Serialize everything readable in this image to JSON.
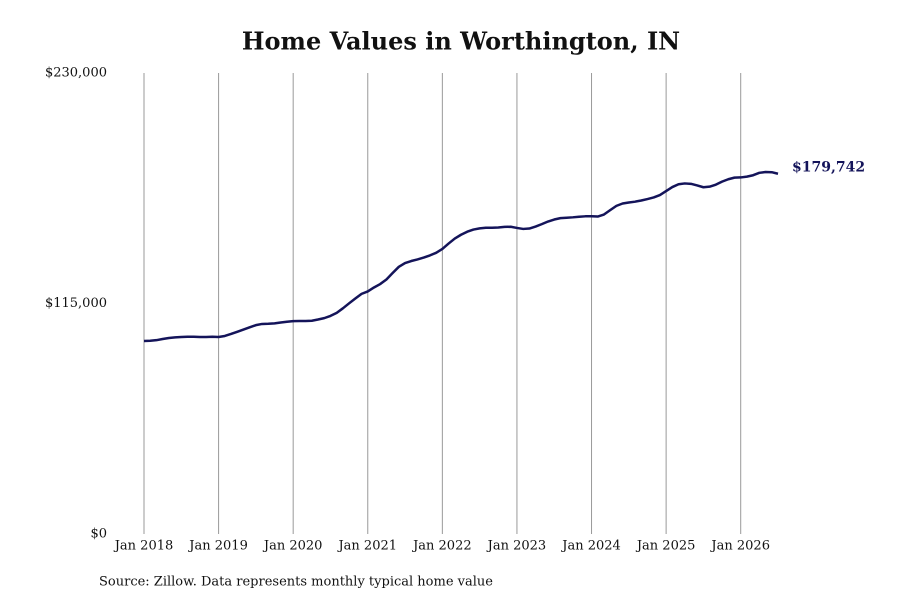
{
  "chart_data": {
    "type": "line",
    "title": "Home Values in Worthington, IN",
    "source": "Source: Zillow. Data represents monthly typical home value",
    "x": [
      "2018-01",
      "2018-02",
      "2018-03",
      "2018-04",
      "2018-05",
      "2018-06",
      "2018-07",
      "2018-08",
      "2018-09",
      "2018-10",
      "2018-11",
      "2018-12",
      "2019-01",
      "2019-02",
      "2019-03",
      "2019-04",
      "2019-05",
      "2019-06",
      "2019-07",
      "2019-08",
      "2019-09",
      "2019-10",
      "2019-11",
      "2019-12",
      "2020-01",
      "2020-02",
      "2020-03",
      "2020-04",
      "2020-05",
      "2020-06",
      "2020-07",
      "2020-08",
      "2020-09",
      "2020-10",
      "2020-11",
      "2020-12",
      "2021-01",
      "2021-02",
      "2021-03",
      "2021-04",
      "2021-05",
      "2021-06",
      "2021-07",
      "2021-08",
      "2021-09",
      "2021-10",
      "2021-11",
      "2021-12",
      "2022-01",
      "2022-02",
      "2022-03",
      "2022-04",
      "2022-05",
      "2022-06",
      "2022-07",
      "2022-08",
      "2022-09",
      "2022-10",
      "2022-11",
      "2022-12",
      "2023-01",
      "2023-02",
      "2023-03",
      "2023-04",
      "2023-05",
      "2023-06",
      "2023-07",
      "2023-08",
      "2023-09",
      "2023-10",
      "2023-11",
      "2023-12",
      "2024-01",
      "2024-02",
      "2024-03",
      "2024-04",
      "2024-05",
      "2024-06",
      "2024-07",
      "2024-08",
      "2024-09",
      "2024-10",
      "2024-11",
      "2024-12",
      "2025-01",
      "2025-02",
      "2025-03",
      "2025-04",
      "2025-05",
      "2025-06",
      "2025-07",
      "2025-08",
      "2025-09",
      "2025-10",
      "2025-11",
      "2025-12",
      "2026-01",
      "2026-02",
      "2026-03",
      "2026-04",
      "2026-05",
      "2026-06",
      "2026-07"
    ],
    "series": [
      {
        "color": "#14145a",
        "values": [
          96300,
          96400,
          96700,
          97300,
          97800,
          98100,
          98300,
          98400,
          98400,
          98300,
          98300,
          98400,
          98300,
          98800,
          99800,
          100900,
          102000,
          103100,
          104200,
          104800,
          104900,
          105100,
          105500,
          105900,
          106200,
          106300,
          106300,
          106400,
          107000,
          107700,
          108800,
          110300,
          112600,
          115100,
          117500,
          119800,
          121000,
          123000,
          124700,
          127000,
          130200,
          133300,
          135200,
          136200,
          137000,
          137900,
          139000,
          140300,
          142200,
          144900,
          147400,
          149300,
          150800,
          151900,
          152500,
          152800,
          152800,
          152900,
          153200,
          153300,
          152700,
          152200,
          152400,
          153400,
          154600,
          155900,
          156900,
          157600,
          157800,
          158000,
          158300,
          158500,
          158500,
          158400,
          159400,
          161600,
          163700,
          164900,
          165400,
          165800,
          166400,
          167100,
          167900,
          169100,
          171100,
          173100,
          174500,
          174900,
          174700,
          173900,
          173000,
          173300,
          174300,
          175800,
          177000,
          177800,
          177900,
          178300,
          179000,
          180200,
          180600,
          180500,
          179742
        ],
        "value_labels": [
          null,
          null,
          null,
          null,
          null,
          null,
          null,
          null,
          null,
          null,
          null,
          null,
          null,
          null,
          null,
          null,
          null,
          null,
          null,
          null,
          null,
          null,
          null,
          null,
          null,
          null,
          null,
          null,
          null,
          null,
          null,
          null,
          null,
          null,
          null,
          null,
          null,
          null,
          null,
          null,
          null,
          null,
          null,
          null,
          null,
          null,
          null,
          null,
          null,
          null,
          null,
          null,
          null,
          null,
          null,
          null,
          null,
          null,
          null,
          null,
          null,
          null,
          null,
          null,
          null,
          null,
          null,
          null,
          null,
          null,
          null,
          null,
          null,
          null,
          null,
          null,
          null,
          null,
          null,
          null,
          null,
          null,
          null,
          null,
          null,
          null,
          null,
          null,
          null,
          null,
          null,
          null,
          null,
          null,
          null,
          null,
          null,
          null,
          null,
          null,
          null,
          null,
          "$179,742"
        ]
      }
    ],
    "xlim": [
      "2018-01",
      "2026-07"
    ],
    "xticks": [
      {
        "value": "2018-01",
        "label": "Jan 2018"
      },
      {
        "value": "2019-01",
        "label": "Jan 2019"
      },
      {
        "value": "2020-01",
        "label": "Jan 2020"
      },
      {
        "value": "2021-01",
        "label": "Jan 2021"
      },
      {
        "value": "2022-01",
        "label": "Jan 2022"
      },
      {
        "value": "2023-01",
        "label": "Jan 2023"
      },
      {
        "value": "2024-01",
        "label": "Jan 2024"
      },
      {
        "value": "2025-01",
        "label": "Jan 2025"
      },
      {
        "value": "2026-01",
        "label": "Jan 2026"
      }
    ],
    "ylim": [
      0,
      230000
    ],
    "yticks": [
      {
        "value": 0,
        "label": "$0"
      },
      {
        "value": 115000,
        "label": "$115,000"
      },
      {
        "value": 230000,
        "label": "$230,000"
      }
    ],
    "grid": "x"
  }
}
